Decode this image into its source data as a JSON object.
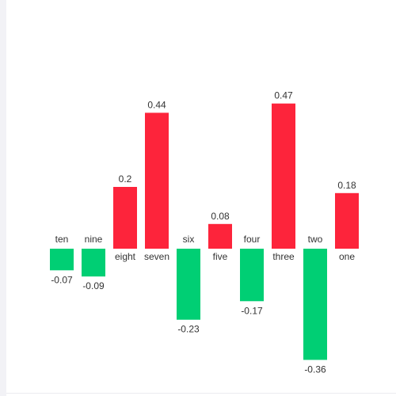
{
  "chart_data": {
    "type": "bar",
    "title": "",
    "xlabel": "",
    "ylabel": "",
    "categories": [
      "ten",
      "nine",
      "eight",
      "seven",
      "six",
      "five",
      "four",
      "three",
      "two",
      "one"
    ],
    "values": [
      -0.07,
      -0.09,
      0.2,
      0.44,
      -0.23,
      0.08,
      -0.17,
      0.47,
      -0.36,
      0.18
    ],
    "value_labels": [
      "-0.07",
      "-0.09",
      "0.2",
      "0.44",
      "-0.23",
      "0.08",
      "-0.17",
      "0.47",
      "-0.36",
      "0.18"
    ],
    "ylim": [
      -0.36,
      0.47
    ],
    "grid": false,
    "legend": "none",
    "colors": {
      "positive": "#fd243b",
      "negative": "#00cf74"
    }
  }
}
